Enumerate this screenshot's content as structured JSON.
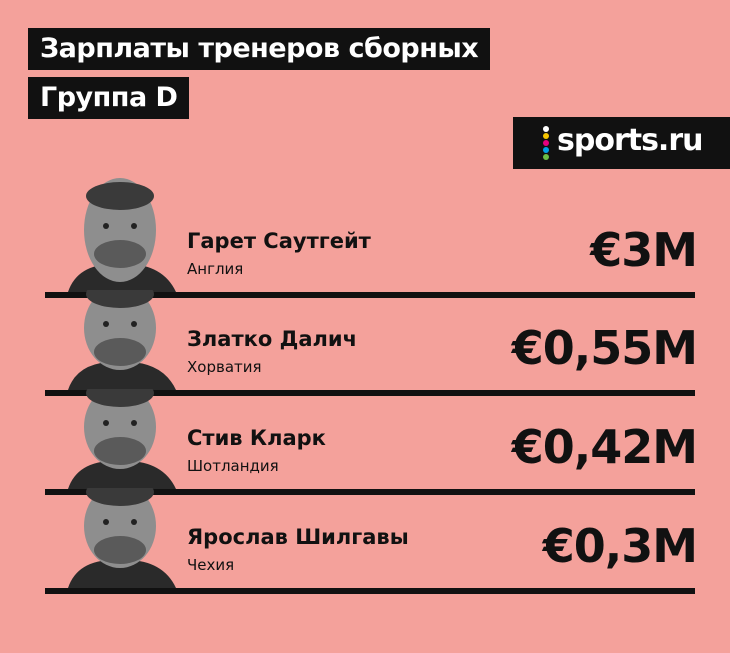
{
  "header": {
    "title": "Зарплаты тренеров сборных",
    "subtitle": "Группа D"
  },
  "logo": "sports.ru",
  "rows": [
    {
      "name": "Гарет Саутгейт",
      "country": "Англия",
      "salary": "€3M"
    },
    {
      "name": "Златко Далич",
      "country": "Хорватия",
      "salary": "€0,55M"
    },
    {
      "name": "Стив Кларк",
      "country": "Шотландия",
      "salary": "€0,42M"
    },
    {
      "name": "Ярослав Шилгавы",
      "country": "Чехия",
      "salary": "€0,3M"
    }
  ]
}
